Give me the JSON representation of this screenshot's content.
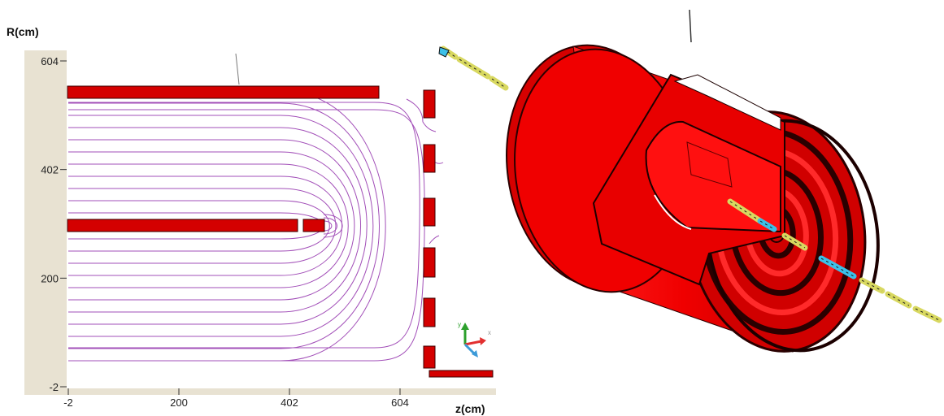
{
  "left_panel": {
    "y_axis_title": "R(cm)",
    "x_axis_title": "z(cm)",
    "y_ticks": [
      {
        "value": 604,
        "label": "604"
      },
      {
        "value": 402,
        "label": "402"
      },
      {
        "value": 200,
        "label": "200"
      },
      {
        "value": -2,
        "label": "-2"
      }
    ],
    "x_ticks": [
      {
        "value": -2,
        "label": "-2"
      },
      {
        "value": 200,
        "label": "200"
      },
      {
        "value": 402,
        "label": "402"
      },
      {
        "value": 604,
        "label": "604"
      }
    ],
    "colors": {
      "conductor": "#d40000",
      "field_line": "#a24fb8",
      "axis_band": "#e8e2d2"
    }
  },
  "right_panel": {
    "colors": {
      "body": "#e00000",
      "beamline_yellow": "#d8d860",
      "beamline_cyan": "#3cc0e8"
    }
  }
}
